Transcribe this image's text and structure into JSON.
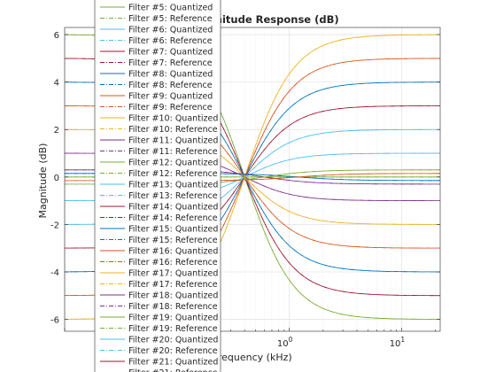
{
  "chart_data": {
    "type": "line",
    "title": "Magnitude Response (dB)",
    "xlabel": "Frequency (kHz)",
    "ylabel": "Magnitude (dB)",
    "xscale": "log",
    "xlim": [
      0.01,
      22.05
    ],
    "ylim": [
      -6.5,
      6.3
    ],
    "grid": true,
    "legend_position": "overlapping left, top",
    "y_tick_labels": [
      "-6",
      "-4",
      "-2",
      "0",
      "2",
      "4",
      "6"
    ],
    "y_ticks": [
      -6,
      -4,
      -2,
      0,
      2,
      4,
      6
    ],
    "x_tick_labels": [
      {
        "base": "10",
        "exp": "0"
      },
      {
        "base": "10",
        "exp": "1"
      }
    ],
    "x_ticks": [
      1,
      10
    ],
    "legend_entries": [
      "Filter #5: Quantized",
      "Filter #5: Reference",
      "Filter #6: Quantized",
      "Filter #6: Reference",
      "Filter #7: Quantized",
      "Filter #7: Reference",
      "Filter #8: Quantized",
      "Filter #8: Reference",
      "Filter #9: Quantized",
      "Filter #9: Reference",
      "Filter #10: Quantized",
      "Filter #10: Reference",
      "Filter #11: Quantized",
      "Filter #11: Reference",
      "Filter #12: Quantized",
      "Filter #12: Reference",
      "Filter #13: Quantized",
      "Filter #13: Reference",
      "Filter #14: Quantized",
      "Filter #14: Reference",
      "Filter #15: Quantized",
      "Filter #15: Reference",
      "Filter #16: Quantized",
      "Filter #16: Reference",
      "Filter #17: Quantized",
      "Filter #17: Reference",
      "Filter #18: Quantized",
      "Filter #18: Reference",
      "Filter #19: Quantized",
      "Filter #19: Reference",
      "Filter #20: Quantized",
      "Filter #20: Reference",
      "Filter #21: Quantized",
      "Filter #21: Reference"
    ],
    "legend_colors": [
      "#77ac30",
      "#4dbeee",
      "#a2142f",
      "#0072bd",
      "#d95319",
      "#edb120",
      "#7e2f8e"
    ],
    "series_style": "quantized solid, reference dash-dot; shelving filters with left-side level L, right-side level R, transition center frequency fc (kHz)",
    "series": [
      {
        "L": 6.0,
        "R": -6.0,
        "fc": 0.4,
        "color": "#77ac30"
      },
      {
        "L": 5.0,
        "R": -5.0,
        "fc": 0.4,
        "color": "#a2142f"
      },
      {
        "L": 4.0,
        "R": -4.0,
        "fc": 0.4,
        "color": "#0072bd"
      },
      {
        "L": 3.0,
        "R": -3.0,
        "fc": 0.4,
        "color": "#d95319"
      },
      {
        "L": 2.0,
        "R": -2.0,
        "fc": 0.4,
        "color": "#edb120"
      },
      {
        "L": 1.0,
        "R": -1.0,
        "fc": 0.4,
        "color": "#7e2f8e"
      },
      {
        "L": 0.0,
        "R": 0.0,
        "fc": 0.4,
        "color": "#77ac30"
      },
      {
        "L": -1.0,
        "R": 1.0,
        "fc": 0.4,
        "color": "#4dbeee"
      },
      {
        "L": -2.0,
        "R": 2.0,
        "fc": 0.4,
        "color": "#4dbeee"
      },
      {
        "L": -3.0,
        "R": 3.0,
        "fc": 0.4,
        "color": "#a2142f"
      },
      {
        "L": -4.0,
        "R": 4.0,
        "fc": 0.4,
        "color": "#0072bd"
      },
      {
        "L": -5.0,
        "R": 5.0,
        "fc": 0.4,
        "color": "#d95319"
      },
      {
        "L": -6.0,
        "R": 6.0,
        "fc": 0.4,
        "color": "#edb120"
      },
      {
        "L": 0.3,
        "R": -0.3,
        "fc": 0.6,
        "color": "#7e2f8e"
      },
      {
        "L": -0.3,
        "R": 0.3,
        "fc": 0.6,
        "color": "#77ac30"
      },
      {
        "L": 0.15,
        "R": -0.15,
        "fc": 1.2,
        "color": "#0072bd"
      },
      {
        "L": -0.15,
        "R": 0.15,
        "fc": 1.2,
        "color": "#d95319"
      }
    ]
  }
}
